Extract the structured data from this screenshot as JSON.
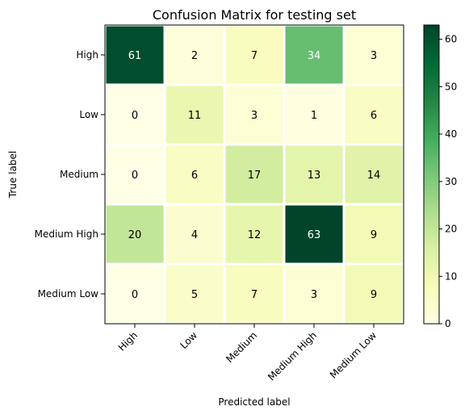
{
  "chart_data": {
    "type": "heatmap",
    "title": "Confusion Matrix for testing set",
    "xlabel": "Predicted label",
    "ylabel": "True label",
    "x_categories": [
      "High",
      "Low",
      "Medium",
      "Medium High",
      "Medium Low"
    ],
    "y_categories": [
      "High",
      "Low",
      "Medium",
      "Medium High",
      "Medium Low"
    ],
    "values": [
      [
        61,
        2,
        7,
        34,
        3
      ],
      [
        0,
        11,
        3,
        1,
        6
      ],
      [
        0,
        6,
        17,
        13,
        14
      ],
      [
        20,
        4,
        12,
        63,
        9
      ],
      [
        0,
        5,
        7,
        3,
        9
      ]
    ],
    "colormap": "YlGn",
    "color_range": [
      0,
      63
    ],
    "colorbar_ticks": [
      0,
      10,
      20,
      30,
      40,
      50,
      60
    ],
    "grid": false,
    "legend": "colorbar-right"
  }
}
